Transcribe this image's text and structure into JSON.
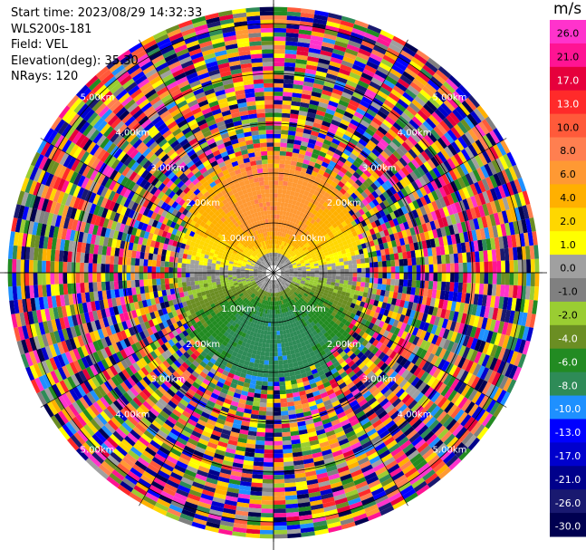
{
  "header": {
    "start_time": "Start time: 2023/08/29 14:32:33",
    "instrument": "WLS200s-181",
    "field": "Field: VEL",
    "elevation": "Elevation(deg): 35.30",
    "nrays": "NRays: 120"
  },
  "chart_data": {
    "type": "heatmap",
    "projection": "polar-ppi",
    "field": "VEL",
    "units": "m/s",
    "n_rays": 120,
    "elevation_deg": 35.3,
    "range_rings_km": [
      1.0,
      2.0,
      3.0,
      4.0,
      5.0
    ],
    "ring_labels": [
      "1.00km",
      "2.00km",
      "3.00km",
      "4.00km",
      "5.00km"
    ],
    "max_range_km": 5.4,
    "spoke_interval_deg": 30,
    "colorbar": {
      "unit_label": "m/s",
      "ticks": [
        "26.0",
        "21.0",
        "17.0",
        "13.0",
        "10.0",
        "8.0",
        "6.0",
        "4.0",
        "2.0",
        "1.0",
        "0.0",
        "-1.0",
        "-2.0",
        "-4.0",
        "-6.0",
        "-8.0",
        "-10.0",
        "-13.0",
        "-17.0",
        "-21.0",
        "-26.0",
        "-30.0"
      ],
      "colors": [
        "#ff33cc",
        "#ff1493",
        "#e6003c",
        "#ff2a2a",
        "#ff5a3a",
        "#ff7f50",
        "#ff9933",
        "#ffb000",
        "#ffd700",
        "#ffff00",
        "#a0a0a0",
        "#808080",
        "#9acd32",
        "#6b8e23",
        "#228b22",
        "#2e8b57",
        "#1e90ff",
        "#0000ff",
        "#0000cd",
        "#00008b",
        "#191970",
        "#000050"
      ]
    }
  }
}
